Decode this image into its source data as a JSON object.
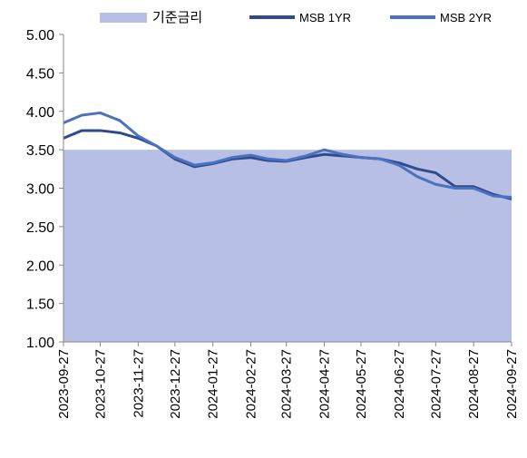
{
  "chart_data": {
    "type": "line",
    "x": [
      "2023-09-27",
      "2023-10-12",
      "2023-10-27",
      "2023-11-12",
      "2023-11-27",
      "2023-12-12",
      "2023-12-27",
      "2024-01-12",
      "2024-01-27",
      "2024-02-12",
      "2024-02-27",
      "2024-03-12",
      "2024-03-27",
      "2024-04-12",
      "2024-04-27",
      "2024-05-12",
      "2024-05-27",
      "2024-06-12",
      "2024-06-27",
      "2024-07-12",
      "2024-07-27",
      "2024-08-12",
      "2024-08-27",
      "2024-09-12",
      "2024-09-27"
    ],
    "series": [
      {
        "name": "기준금리",
        "color": "#b7bfe4",
        "area": true,
        "values": [
          3.5,
          3.5,
          3.5,
          3.5,
          3.5,
          3.5,
          3.5,
          3.5,
          3.5,
          3.5,
          3.5,
          3.5,
          3.5,
          3.5,
          3.5,
          3.5,
          3.5,
          3.5,
          3.5,
          3.5,
          3.5,
          3.5,
          3.5,
          3.5,
          3.5
        ]
      },
      {
        "name": "MSB 1YR",
        "color": "#2f4b8c",
        "values": [
          3.65,
          3.75,
          3.75,
          3.72,
          3.65,
          3.55,
          3.38,
          3.28,
          3.32,
          3.38,
          3.4,
          3.36,
          3.35,
          3.4,
          3.44,
          3.42,
          3.4,
          3.38,
          3.33,
          3.25,
          3.2,
          3.02,
          3.02,
          2.92,
          2.86
        ]
      },
      {
        "name": "MSB 2YR",
        "color": "#4a72c0",
        "values": [
          3.85,
          3.95,
          3.98,
          3.88,
          3.68,
          3.55,
          3.4,
          3.3,
          3.33,
          3.4,
          3.43,
          3.38,
          3.36,
          3.42,
          3.5,
          3.44,
          3.4,
          3.38,
          3.3,
          3.15,
          3.05,
          3.0,
          3.0,
          2.9,
          2.88
        ]
      }
    ],
    "xlim": [
      "2023-09-27",
      "2024-09-27"
    ],
    "xticks": [
      "2023-09-27",
      "2023-10-27",
      "2023-11-27",
      "2023-12-27",
      "2024-01-27",
      "2024-02-27",
      "2024-03-27",
      "2024-04-27",
      "2024-05-27",
      "2024-06-27",
      "2024-07-27",
      "2024-08-27",
      "2024-09-27"
    ],
    "ylim": [
      1,
      5
    ],
    "yticks": [
      {
        "value": 1,
        "label": "1.00"
      },
      {
        "value": 1.5,
        "label": "1.50"
      },
      {
        "value": 2,
        "label": "2.00"
      },
      {
        "value": 2.5,
        "label": "2.50"
      },
      {
        "value": 3,
        "label": "3.00"
      },
      {
        "value": 3.5,
        "label": "3.50"
      },
      {
        "value": 4,
        "label": "4.00"
      },
      {
        "value": 4.5,
        "label": "4.50"
      },
      {
        "value": 5,
        "label": "5.00"
      }
    ],
    "legend": "top"
  }
}
